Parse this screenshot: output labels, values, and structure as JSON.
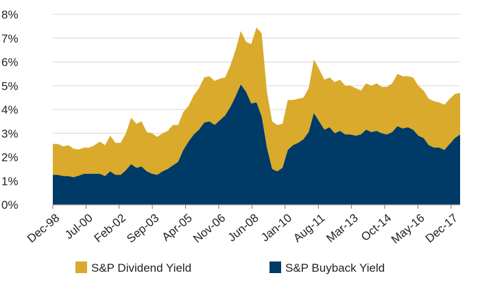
{
  "chart_data": {
    "type": "area",
    "stacked": true,
    "x_tick_labels": [
      "Dec-98",
      "Jul-00",
      "Feb-02",
      "Sep-03",
      "Apr-05",
      "Nov-06",
      "Jun-08",
      "Jan-10",
      "Aug-11",
      "Mar-13",
      "Oct-14",
      "May-16",
      "Dec-17"
    ],
    "y_tick_labels": [
      "0%",
      "1%",
      "2%",
      "3%",
      "4%",
      "5%",
      "6%",
      "7%",
      "8%"
    ],
    "ylim": [
      0,
      8
    ],
    "grid": "horizontal",
    "legend_position": "bottom",
    "colors": {
      "dividend": "#D9AA2C",
      "buyback": "#003A66"
    },
    "series": [
      {
        "name": "S&P Buyback Yield",
        "values": [
          1.25,
          1.25,
          1.2,
          1.2,
          1.15,
          1.22,
          1.3,
          1.3,
          1.3,
          1.3,
          1.2,
          1.4,
          1.25,
          1.25,
          1.45,
          1.7,
          1.55,
          1.6,
          1.4,
          1.3,
          1.25,
          1.4,
          1.5,
          1.65,
          1.8,
          2.3,
          2.65,
          2.95,
          3.15,
          3.45,
          3.5,
          3.35,
          3.55,
          3.75,
          4.1,
          4.55,
          5.05,
          4.75,
          4.25,
          4.3,
          3.7,
          2.4,
          1.5,
          1.4,
          1.55,
          2.3,
          2.5,
          2.6,
          2.75,
          3.05,
          3.85,
          3.5,
          3.15,
          3.25,
          3.0,
          3.1,
          2.95,
          2.95,
          2.9,
          2.95,
          3.15,
          3.05,
          3.1,
          3.0,
          2.95,
          3.05,
          3.3,
          3.2,
          3.25,
          3.15,
          2.9,
          2.8,
          2.5,
          2.4,
          2.4,
          2.3,
          2.55,
          2.8,
          2.95
        ]
      },
      {
        "name": "S&P Dividend Yield",
        "values": [
          1.3,
          1.3,
          1.25,
          1.3,
          1.2,
          1.1,
          1.1,
          1.1,
          1.2,
          1.35,
          1.3,
          1.5,
          1.35,
          1.35,
          1.55,
          1.95,
          1.85,
          1.9,
          1.65,
          1.7,
          1.6,
          1.6,
          1.6,
          1.7,
          1.55,
          1.6,
          1.5,
          1.65,
          1.75,
          1.9,
          1.9,
          1.85,
          1.75,
          1.6,
          1.75,
          1.95,
          2.25,
          2.1,
          2.5,
          3.15,
          3.5,
          2.35,
          2.0,
          1.95,
          1.85,
          2.1,
          1.9,
          1.85,
          1.75,
          1.85,
          2.25,
          2.2,
          2.1,
          2.1,
          2.15,
          2.15,
          2.05,
          2.05,
          2.0,
          1.85,
          1.95,
          1.95,
          2.0,
          1.95,
          2.0,
          2.05,
          2.2,
          2.2,
          2.15,
          2.2,
          2.1,
          2.0,
          1.95,
          1.95,
          1.9,
          1.9,
          1.9,
          1.85,
          1.75
        ]
      }
    ]
  },
  "legend": {
    "dividend_label": "S&P Dividend Yield",
    "buyback_label": "S&P Buyback Yield"
  }
}
